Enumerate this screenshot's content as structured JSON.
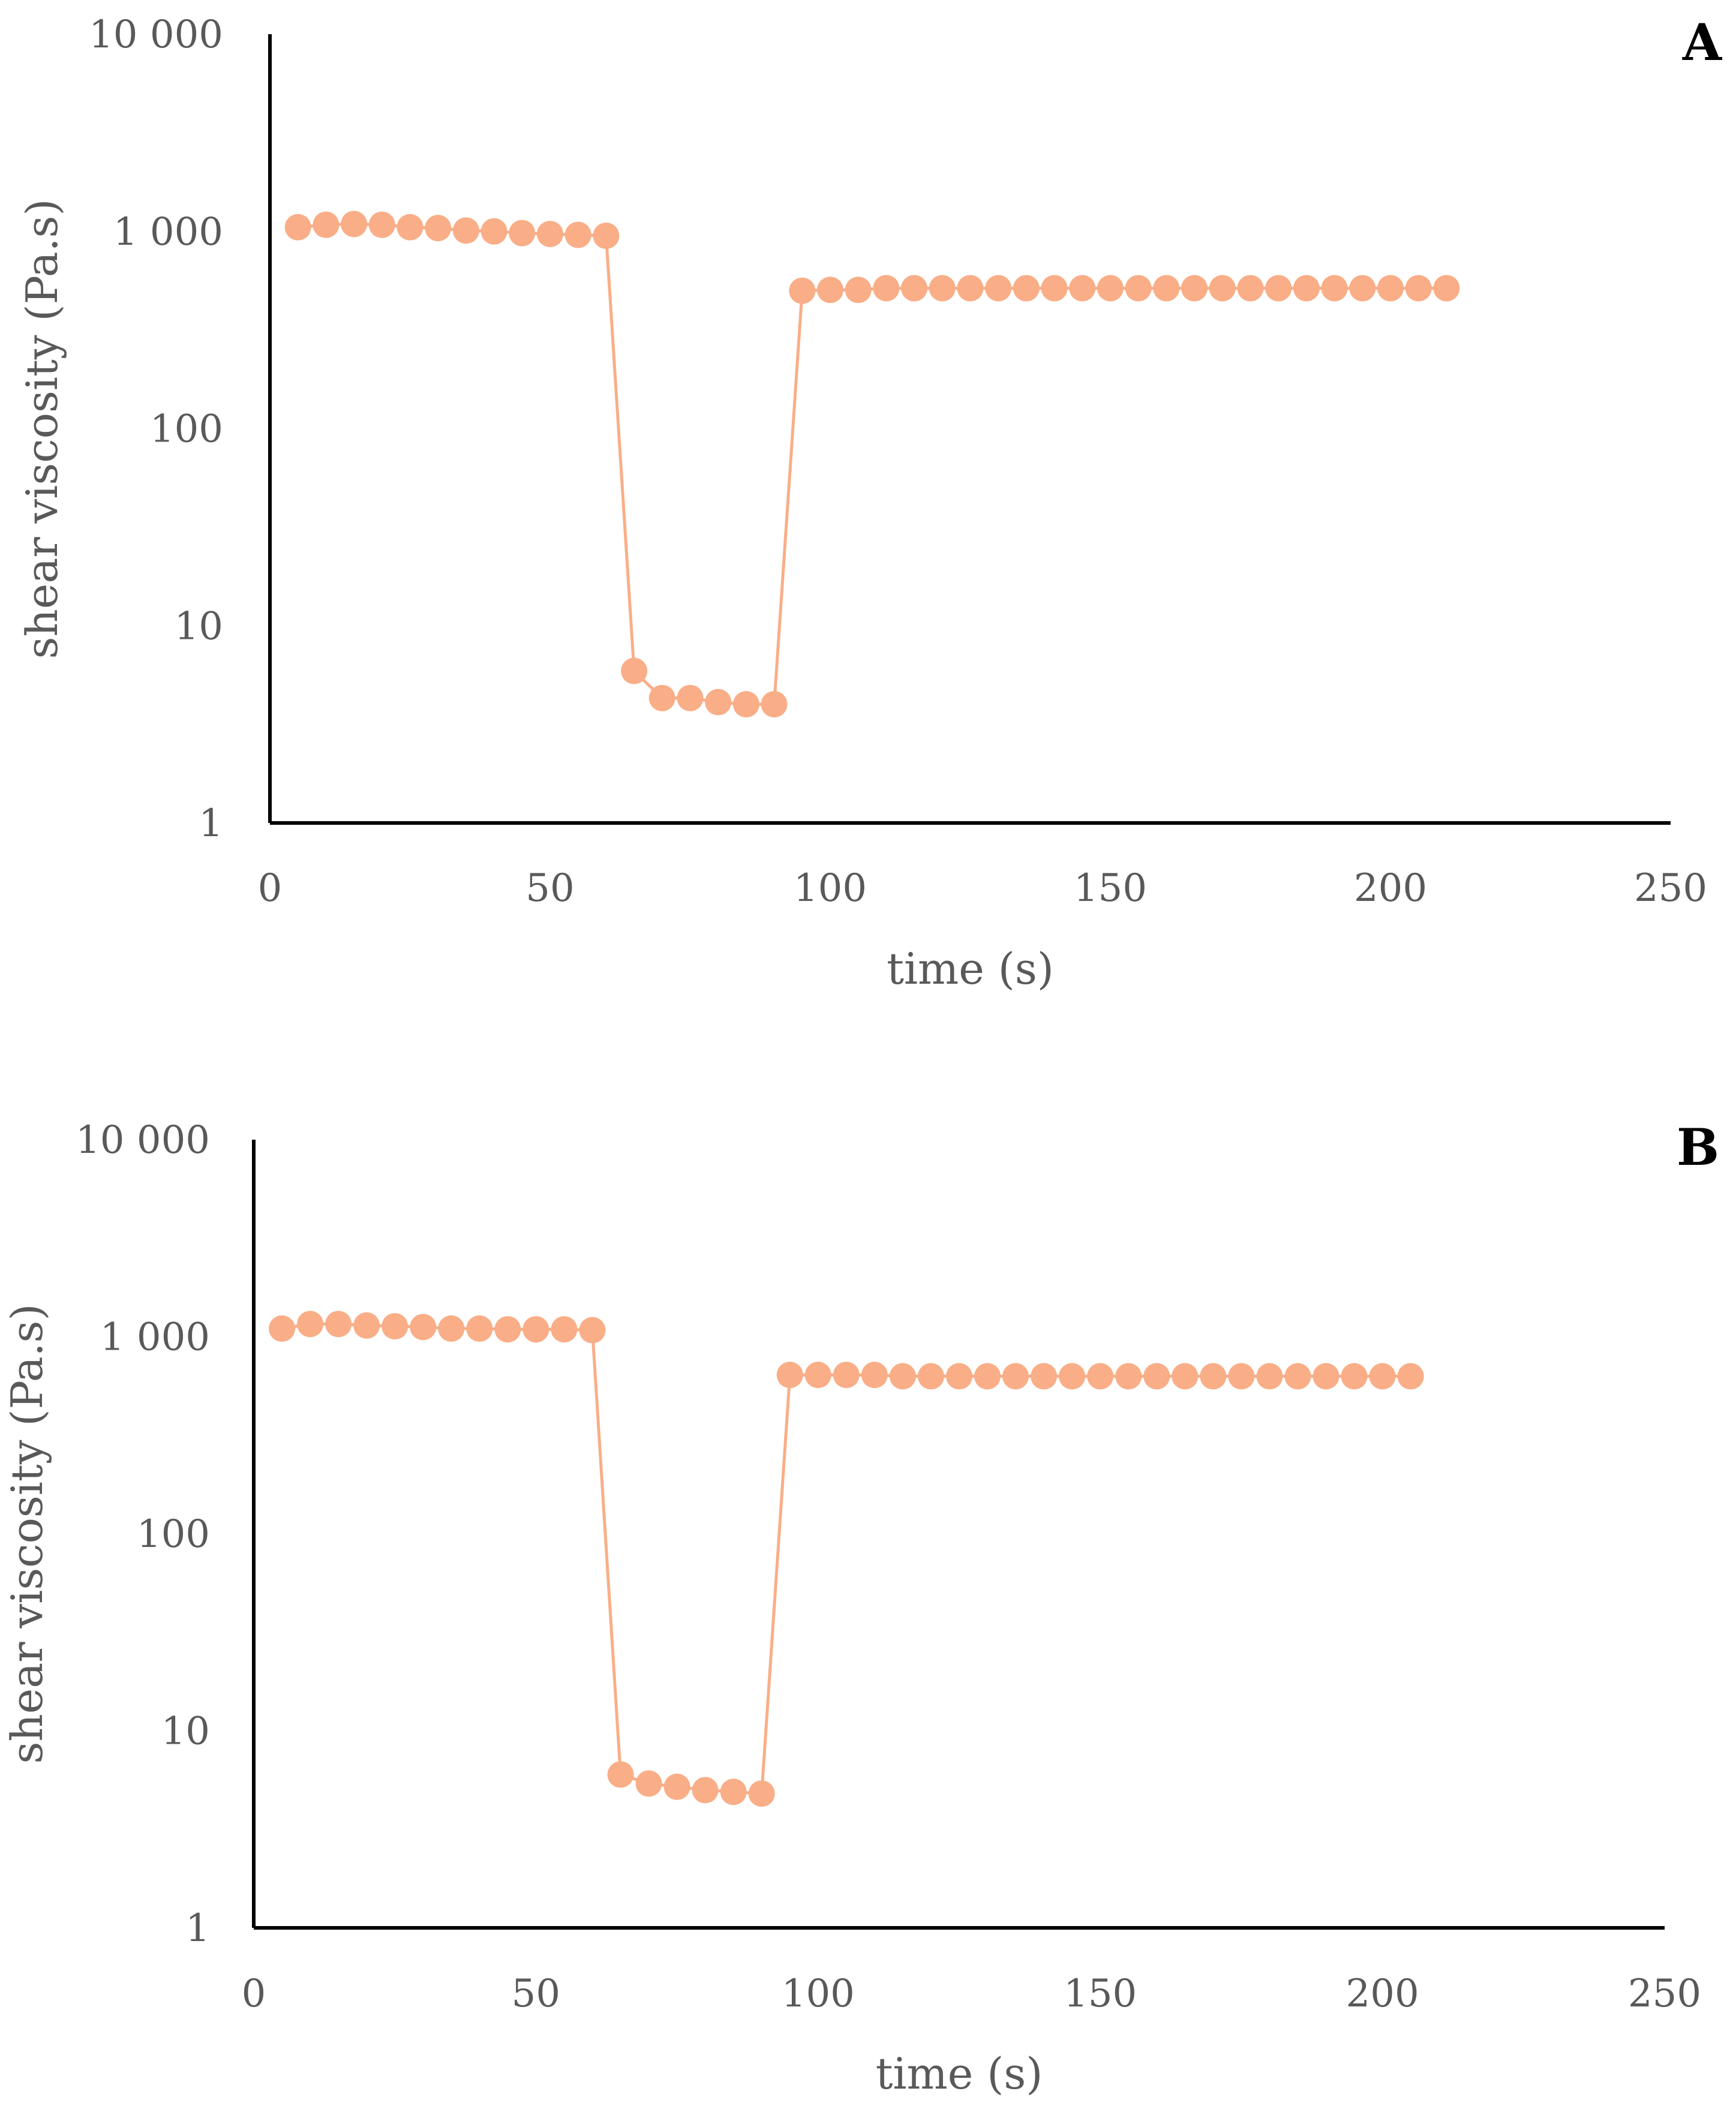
{
  "colors": {
    "series": "#F9AE87",
    "axis": "#000000",
    "text": "#595959"
  },
  "chart_data": [
    {
      "type": "line",
      "panel_label": "A",
      "title": "",
      "xlabel": "time (s)",
      "ylabel": "shear viscosity (Pa.s)",
      "xlim": [
        0,
        250
      ],
      "ylim": [
        1,
        10000
      ],
      "yscale": "log",
      "xticks": [
        0,
        50,
        100,
        150,
        200,
        250
      ],
      "xtick_labels": [
        "0",
        "50",
        "100",
        "150",
        "200",
        "250"
      ],
      "yticks": [
        1,
        10,
        100,
        1000,
        10000
      ],
      "ytick_labels": [
        "1",
        "10",
        "100",
        "1 000",
        "10 000"
      ],
      "grid": false,
      "series": [
        {
          "name": "shear viscosity",
          "x": [
            5,
            10,
            15,
            20,
            25,
            30,
            35,
            40,
            45,
            50,
            55,
            60,
            65,
            70,
            75,
            80,
            85,
            90,
            95,
            100,
            105,
            110,
            115,
            120,
            125,
            130,
            135,
            140,
            145,
            150,
            155,
            160,
            165,
            170,
            175,
            180,
            185,
            190,
            195,
            200,
            205,
            210
          ],
          "y": [
            1050,
            1080,
            1090,
            1080,
            1050,
            1040,
            1010,
            1000,
            980,
            970,
            960,
            950,
            5.9,
            4.3,
            4.3,
            4.1,
            4.0,
            4.0,
            500,
            505,
            505,
            515,
            515,
            515,
            515,
            515,
            515,
            515,
            515,
            515,
            515,
            515,
            515,
            515,
            515,
            515,
            515,
            515,
            515,
            515,
            515,
            515
          ]
        }
      ]
    },
    {
      "type": "line",
      "panel_label": "B",
      "title": "",
      "xlabel": "time (s)",
      "ylabel": "shear viscosity (Pa.s)",
      "xlim": [
        0,
        250
      ],
      "ylim": [
        1,
        10000
      ],
      "yscale": "log",
      "xticks": [
        0,
        50,
        100,
        150,
        200,
        250
      ],
      "xtick_labels": [
        "0",
        "50",
        "100",
        "150",
        "200",
        "250"
      ],
      "yticks": [
        1,
        10,
        100,
        1000,
        10000
      ],
      "ytick_labels": [
        "1",
        "10",
        "100",
        "1 000",
        "10 000"
      ],
      "grid": false,
      "series": [
        {
          "name": "shear viscosity",
          "x": [
            5,
            10,
            15,
            20,
            25,
            30,
            35,
            40,
            45,
            50,
            55,
            60,
            65,
            70,
            75,
            80,
            85,
            90,
            95,
            100,
            105,
            110,
            115,
            120,
            125,
            130,
            135,
            140,
            145,
            150,
            155,
            160,
            165,
            170,
            175,
            180,
            185,
            190,
            195,
            200,
            205
          ],
          "y": [
            1100,
            1160,
            1160,
            1140,
            1130,
            1120,
            1100,
            1100,
            1090,
            1090,
            1090,
            1080,
            6.0,
            5.4,
            5.2,
            5.0,
            4.9,
            4.8,
            640,
            640,
            640,
            640,
            630,
            630,
            630,
            630,
            630,
            630,
            630,
            630,
            630,
            630,
            630,
            630,
            630,
            630,
            630,
            630,
            630,
            630,
            630
          ]
        }
      ]
    }
  ]
}
